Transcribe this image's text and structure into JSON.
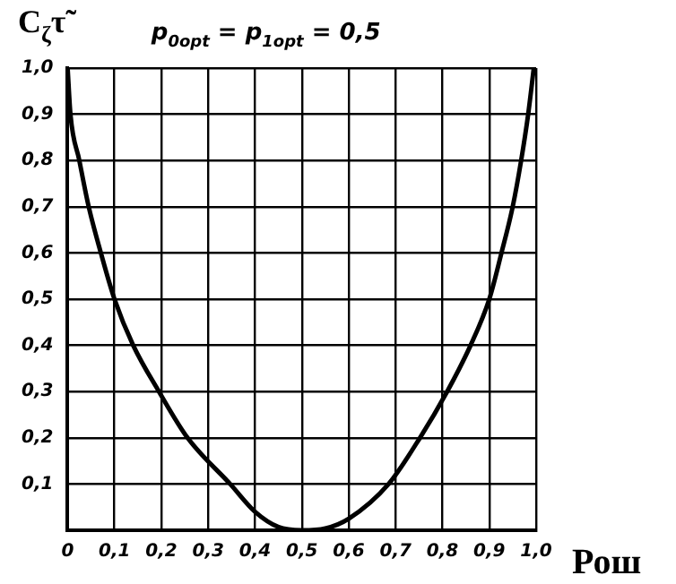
{
  "chart_data": {
    "type": "line",
    "title": "p$_{0opt}$ = p$_{1opt}$ = 0,5",
    "xlabel": "Рош",
    "ylabel": "C$_{ζ}$τ̃",
    "x": [
      0,
      0.006,
      0.025,
      0.045,
      0.071,
      0.1,
      0.14,
      0.195,
      0.256,
      0.347,
      0.4,
      0.45,
      0.5,
      0.55,
      0.6,
      0.685,
      0.752,
      0.81,
      0.86,
      0.9,
      0.926,
      0.95,
      0.968,
      0.983,
      0.995
    ],
    "series": [
      {
        "color": "#000000",
        "values": [
          1.0,
          0.9,
          0.8,
          0.7,
          0.6,
          0.5,
          0.4,
          0.3,
          0.2,
          0.1,
          0.04,
          0.007,
          0,
          0.004,
          0.025,
          0.1,
          0.2,
          0.3,
          0.4,
          0.5,
          0.6,
          0.7,
          0.8,
          0.9,
          1.0
        ]
      }
    ],
    "xlim": [
      0,
      1
    ],
    "ylim": [
      0,
      1
    ],
    "xticks": [
      {
        "value": 0,
        "label": "0"
      },
      {
        "value": 0.1,
        "label": "0,1"
      },
      {
        "value": 0.2,
        "label": "0,2"
      },
      {
        "value": 0.3,
        "label": "0,3"
      },
      {
        "value": 0.4,
        "label": "0,4"
      },
      {
        "value": 0.5,
        "label": "0,5"
      },
      {
        "value": 0.6,
        "label": "0,6"
      },
      {
        "value": 0.7,
        "label": "0,7"
      },
      {
        "value": 0.8,
        "label": "0,8"
      },
      {
        "value": 0.9,
        "label": "0,9"
      },
      {
        "value": 1,
        "label": "1,0"
      }
    ],
    "yticks": [
      {
        "value": 0,
        "label": null
      },
      {
        "value": 0.1,
        "label": "0,1"
      },
      {
        "value": 0.2,
        "label": "0,2"
      },
      {
        "value": 0.3,
        "label": "0,3"
      },
      {
        "value": 0.4,
        "label": "0,4"
      },
      {
        "value": 0.5,
        "label": "0,5"
      },
      {
        "value": 0.6,
        "label": "0,6"
      },
      {
        "value": 0.7,
        "label": "0,7"
      },
      {
        "value": 0.8,
        "label": "0,8"
      },
      {
        "value": 0.9,
        "label": "0,9"
      },
      {
        "value": 1,
        "label": "1,0"
      }
    ],
    "grid": true,
    "legend": false,
    "marker": "none",
    "line_style": "solid"
  }
}
